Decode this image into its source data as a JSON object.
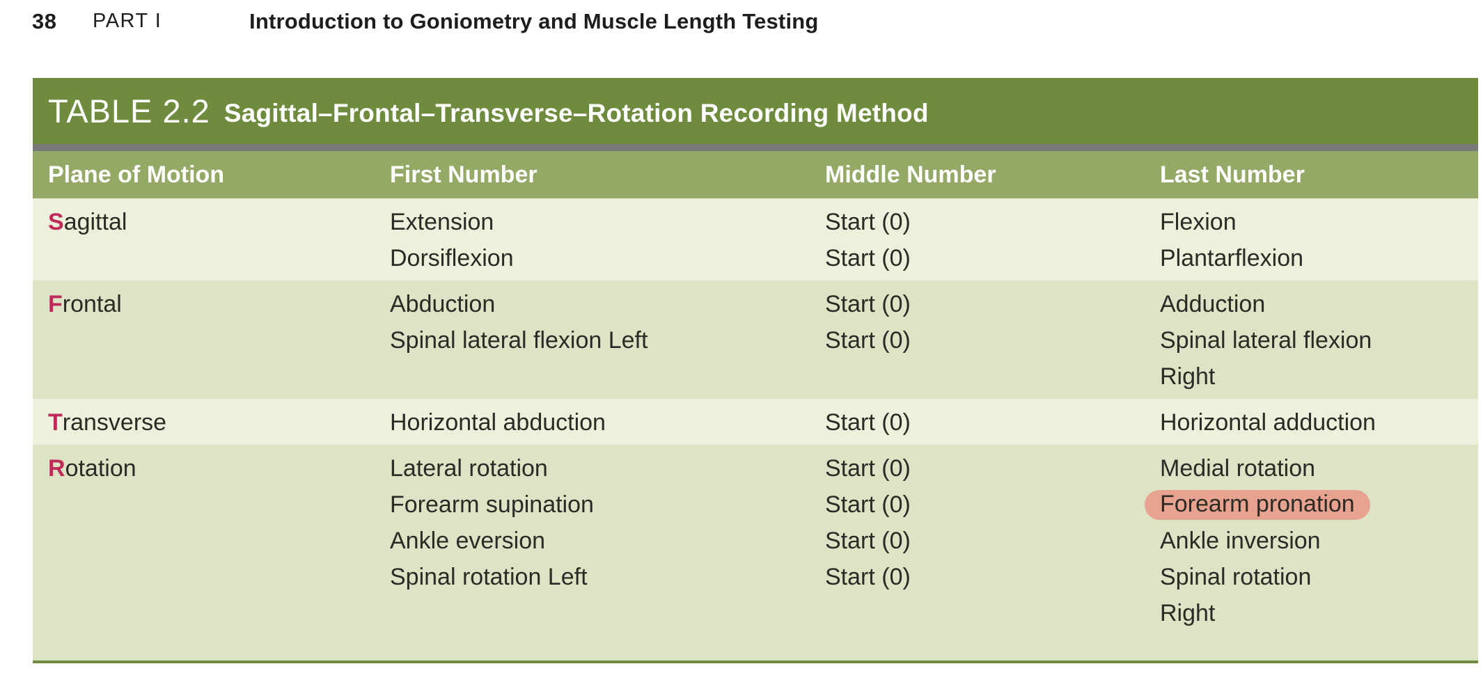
{
  "header": {
    "page_number": "38",
    "part_label": "PART I",
    "section_title": "Introduction to Goniometry and Muscle Length Testing"
  },
  "table": {
    "label": "TABLE 2.2",
    "title": "Sagittal–Frontal–Transverse–Rotation Recording Method",
    "columns": [
      "Plane of Motion",
      "First Number",
      "Middle Number",
      "Last Number"
    ],
    "rows": [
      {
        "plane_initial": "S",
        "plane_rest": "agittal",
        "first": [
          "Extension",
          "Dorsiflexion"
        ],
        "middle": [
          "Start (0)",
          "Start (0)"
        ],
        "last": [
          "Flexion",
          "Plantarflexion"
        ]
      },
      {
        "plane_initial": "F",
        "plane_rest": "rontal",
        "first": [
          "Abduction",
          "Spinal lateral flexion Left"
        ],
        "middle": [
          "Start (0)",
          "Start (0)"
        ],
        "last": [
          "Adduction",
          "Spinal lateral flexion",
          "Right"
        ]
      },
      {
        "plane_initial": "T",
        "plane_rest": "ransverse",
        "first": [
          "Horizontal abduction"
        ],
        "middle": [
          "Start (0)"
        ],
        "last": [
          "Horizontal adduction"
        ]
      },
      {
        "plane_initial": "R",
        "plane_rest": "otation",
        "first": [
          "Lateral rotation",
          "Forearm supination",
          "Ankle eversion",
          "Spinal rotation Left"
        ],
        "middle": [
          "Start (0)",
          "Start (0)",
          "Start (0)",
          "Start (0)"
        ],
        "last": [
          "Medial rotation",
          {
            "text": "Forearm pronation",
            "highlighted": true
          },
          "Ankle inversion",
          "Spinal rotation",
          "Right"
        ]
      }
    ]
  },
  "colors": {
    "title_bar": "#6f8c3e",
    "gray_divider": "#7b7977",
    "header_row": "#94a965",
    "row_light": "#eef0dc",
    "row_dark": "#dde3c5",
    "plane_initial_accent": "#bf2a58",
    "highlight_marker": "#e8a390",
    "bottom_rule": "#6e8b3d",
    "body_text": "#2b2a24",
    "header_text": "#ffffff"
  }
}
